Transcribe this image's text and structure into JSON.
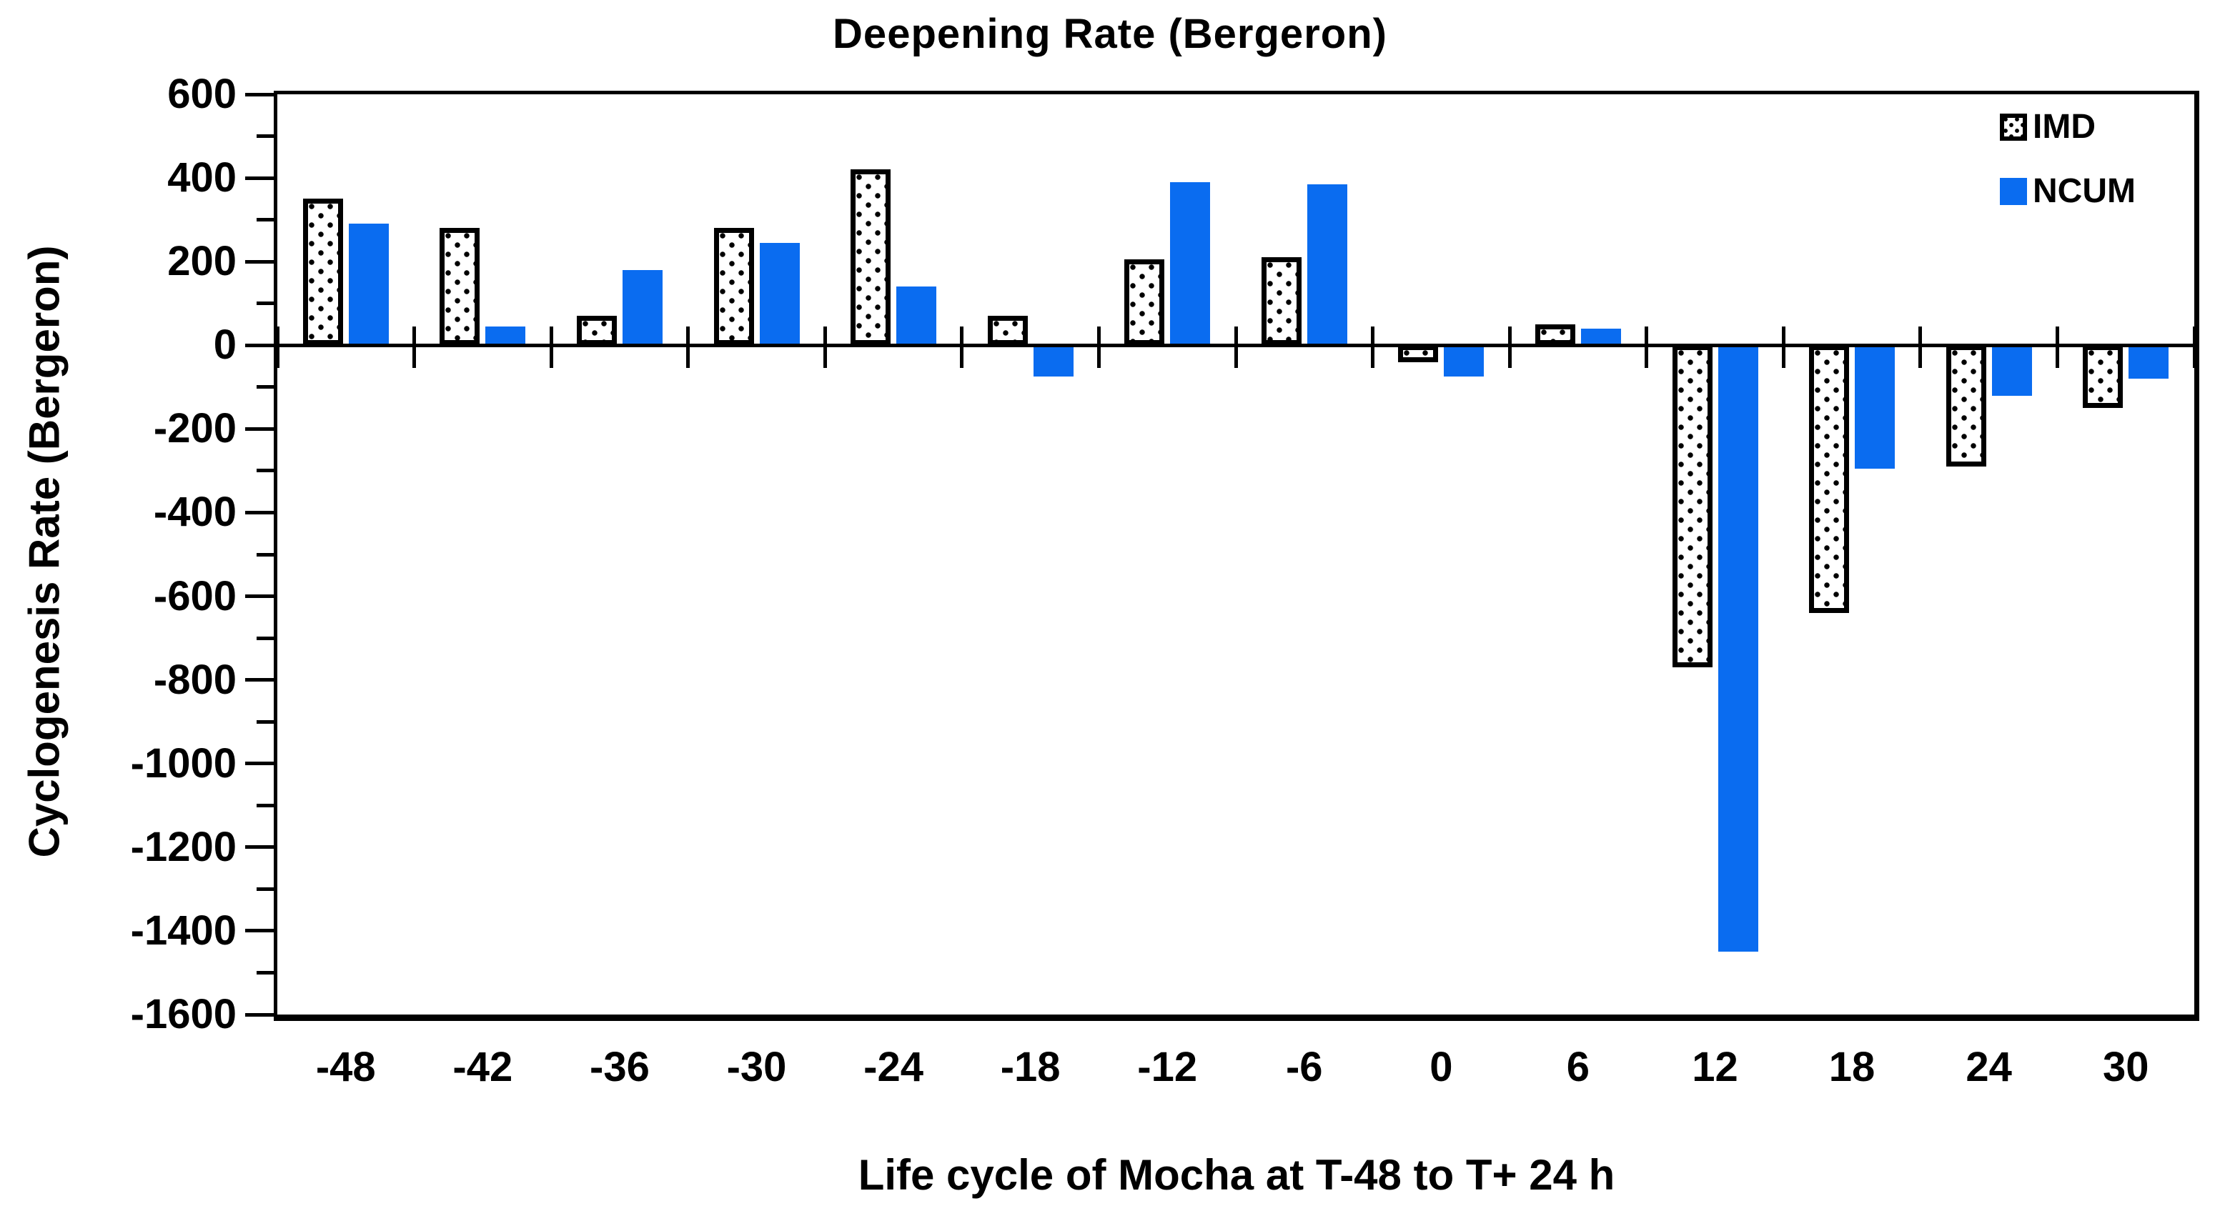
{
  "title": "Deepening Rate (Bergeron)",
  "y_axis_title": "Cyclogenesis Rate (Bergeron)",
  "x_axis_title": "Life cycle of Mocha at T-48 to T+ 24 h",
  "legend": {
    "items": [
      "IMD",
      "NCUM"
    ]
  },
  "colors": {
    "ncum_bar": "#0a6cf0",
    "imd_fill": "#ffffff",
    "imd_dots": "#000000",
    "axis": "#000000",
    "background": "#ffffff"
  },
  "chart_data": {
    "type": "bar",
    "title": "Deepening Rate (Bergeron)",
    "xlabel": "Life cycle of Mocha at T-48 to T+ 24 h",
    "ylabel": "Cyclogenesis Rate (Bergeron)",
    "categories": [
      "-48",
      "-42",
      "-36",
      "-30",
      "-24",
      "-18",
      "-12",
      "-6",
      "0",
      "6",
      "12",
      "18",
      "24",
      "30"
    ],
    "series": [
      {
        "name": "IMD",
        "values": [
          350,
          280,
          70,
          280,
          420,
          70,
          205,
          210,
          -40,
          50,
          -770,
          -640,
          -290,
          -150
        ]
      },
      {
        "name": "NCUM",
        "values": [
          290,
          45,
          180,
          245,
          140,
          -75,
          390,
          385,
          -75,
          40,
          -1450,
          -295,
          -120,
          -80
        ]
      }
    ],
    "ylim": [
      -1600,
      600
    ],
    "y_major_tick": 200,
    "y_minor_tick": 100,
    "grid": false,
    "legend_position": "top-right-inside"
  }
}
